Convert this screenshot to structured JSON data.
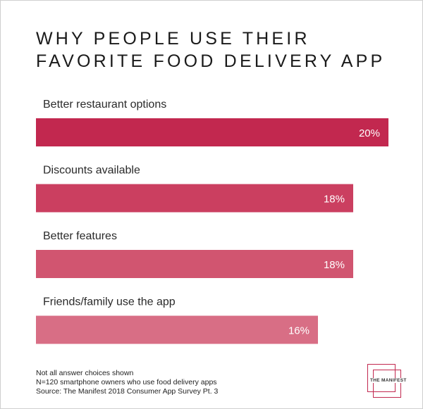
{
  "title": "WHY PEOPLE USE THEIR FAVORITE FOOD DELIVERY APP",
  "chart_data": {
    "type": "bar",
    "orientation": "horizontal",
    "title": "WHY PEOPLE USE THEIR FAVORITE FOOD DELIVERY APP",
    "categories": [
      "Better restaurant options",
      "Discounts available",
      "Better features",
      "Friends/family use the app"
    ],
    "values": [
      20,
      18,
      18,
      16
    ],
    "value_labels": [
      "20%",
      "18%",
      "18%",
      "16%"
    ],
    "colors": [
      "#c2284f",
      "#cb3f60",
      "#d15570",
      "#d86e85"
    ],
    "unit": "%",
    "xlim": [
      0,
      20
    ],
    "grid": false,
    "legend": "none"
  },
  "footnotes": [
    "Not all answer choices shown",
    "N=120 smartphone owners who use food delivery apps",
    "Source: The Manifest 2018 Consumer App Survey Pt. 3"
  ],
  "logo": {
    "text": "THE MANIFEST",
    "color": "#c2284f"
  }
}
